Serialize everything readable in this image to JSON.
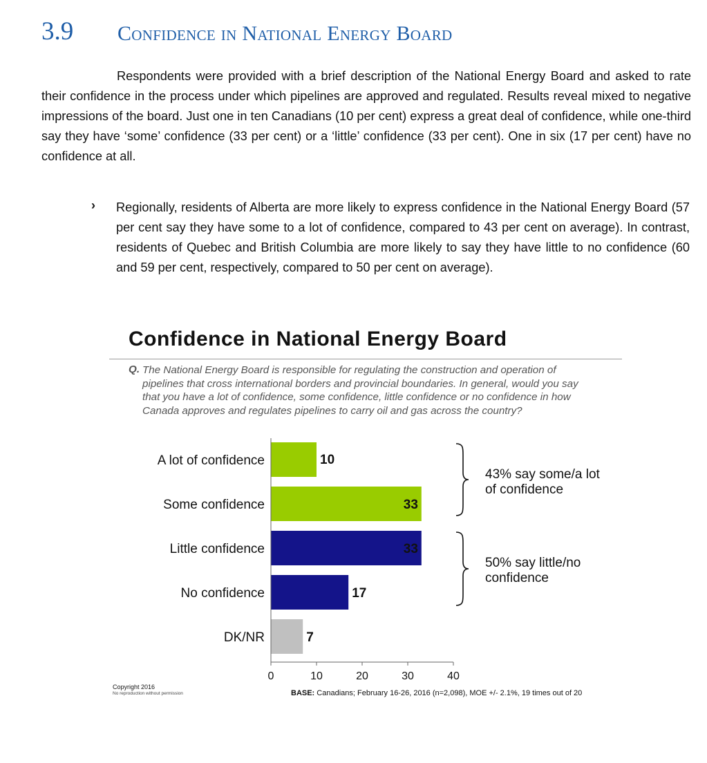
{
  "section": {
    "number": "3.9",
    "title": "Confidence in National Energy Board"
  },
  "intro_paragraph": "Respondents were provided with a brief description of the National Energy Board and asked to rate their confidence in the process under which pipelines are approved and regulated. Results reveal mixed to negative impressions of the board. Just one in ten Canadians (10 per cent) express a great deal of confidence, while one-third say they have ‘some’ confidence (33 per cent) or a ‘little’ confidence (33 per cent). One in six (17 per cent) have no confidence at all.",
  "bullet": {
    "marker": "›",
    "text": "Regionally, residents of Alberta are more likely to express confidence in the National Energy Board (57 per cent say they have some to a lot of confidence, compared to 43 per cent on average). In contrast, residents of Quebec and British Columbia are more likely to say they have little to no confidence (60 and 59 per cent, respectively, compared to 50 per cent on average)."
  },
  "question_label": "Q.",
  "question_text": "The National Energy Board is responsible for regulating the construction and operation of pipelines that cross international borders and provincial boundaries. In general, would you say that you have a lot of confidence, some confidence, little confidence or no confidence in how Canada approves and regulates pipelines to carry oil and gas across the country?",
  "chart_data": {
    "type": "bar",
    "orientation": "horizontal",
    "title": "Confidence in National Energy Board",
    "categories": [
      "A lot of confidence",
      "Some confidence",
      "Little confidence",
      "No confidence",
      "DK/NR"
    ],
    "values": [
      10,
      33,
      33,
      17,
      7
    ],
    "colors": [
      "#99cc00",
      "#99cc00",
      "#14148a",
      "#14148a",
      "#c0c0c0"
    ],
    "xlim": [
      0,
      40
    ],
    "xticks": [
      0,
      10,
      20,
      30,
      40
    ],
    "grid": false,
    "annotations": [
      {
        "text": "43% say some/a lot of confidence",
        "lines": [
          "43% say some/a lot",
          "of confidence"
        ],
        "groups": [
          "A lot of confidence",
          "Some confidence"
        ]
      },
      {
        "text": "50% say little/no confidence",
        "lines": [
          "50% say little/no",
          "confidence"
        ],
        "groups": [
          "Little confidence",
          "No confidence"
        ]
      }
    ]
  },
  "footer": {
    "copyright": "Copyright 2016",
    "reproduction": "No reproduction without permission",
    "base_label": "BASE:",
    "base_text": "Canadians; February 16-26, 2016 (n=2,098), MOE +/- 2.1%, 19 times out of 20"
  }
}
